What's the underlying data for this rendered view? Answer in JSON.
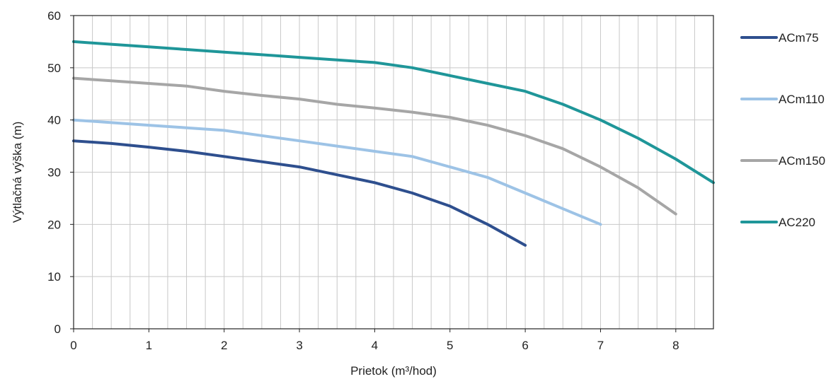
{
  "chart_data": {
    "type": "line",
    "title": "",
    "xlabel": "Prietok (m³/hod)",
    "ylabel": "Výtlačná výška (m)",
    "xlim": [
      0,
      8.5
    ],
    "ylim": [
      0,
      60
    ],
    "x_ticks": [
      "0",
      "1",
      "2",
      "3",
      "4",
      "5",
      "6",
      "7",
      "8"
    ],
    "y_ticks": [
      "0",
      "10",
      "20",
      "30",
      "40",
      "50",
      "60"
    ],
    "minor_x_step": 0.25,
    "y_grid_step": 10,
    "grid": true,
    "legend_position": "right",
    "series": [
      {
        "name": "ACm75",
        "color": "#2E4F8E",
        "points": [
          [
            0,
            36
          ],
          [
            0.5,
            35.5
          ],
          [
            1,
            34.8
          ],
          [
            1.5,
            34
          ],
          [
            2,
            33
          ],
          [
            2.5,
            32
          ],
          [
            3,
            31
          ],
          [
            3.5,
            29.5
          ],
          [
            4,
            28
          ],
          [
            4.5,
            26
          ],
          [
            5,
            23.5
          ],
          [
            5.5,
            20
          ],
          [
            6,
            16
          ]
        ]
      },
      {
        "name": "ACm110",
        "color": "#9DC3E6",
        "points": [
          [
            0,
            40
          ],
          [
            0.5,
            39.5
          ],
          [
            1,
            39
          ],
          [
            1.5,
            38.5
          ],
          [
            2,
            38
          ],
          [
            2.5,
            37
          ],
          [
            3,
            36
          ],
          [
            3.5,
            35
          ],
          [
            4,
            34
          ],
          [
            4.5,
            33
          ],
          [
            5,
            31
          ],
          [
            5.5,
            29
          ],
          [
            6,
            26
          ],
          [
            6.5,
            23
          ],
          [
            7,
            20
          ]
        ]
      },
      {
        "name": "ACm150",
        "color": "#A6A6A6",
        "points": [
          [
            0,
            48
          ],
          [
            0.5,
            47.5
          ],
          [
            1,
            47
          ],
          [
            1.5,
            46.5
          ],
          [
            2,
            45.5
          ],
          [
            2.5,
            44.7
          ],
          [
            3,
            44
          ],
          [
            3.5,
            43
          ],
          [
            4,
            42.3
          ],
          [
            4.5,
            41.5
          ],
          [
            5,
            40.5
          ],
          [
            5.5,
            39
          ],
          [
            6,
            37
          ],
          [
            6.5,
            34.5
          ],
          [
            7,
            31
          ],
          [
            7.5,
            27
          ],
          [
            8,
            22
          ]
        ]
      },
      {
        "name": "AC220",
        "color": "#1F9699",
        "points": [
          [
            0,
            55
          ],
          [
            0.5,
            54.5
          ],
          [
            1,
            54
          ],
          [
            1.5,
            53.5
          ],
          [
            2,
            53
          ],
          [
            2.5,
            52.5
          ],
          [
            3,
            52
          ],
          [
            3.5,
            51.5
          ],
          [
            4,
            51
          ],
          [
            4.5,
            50
          ],
          [
            5,
            48.5
          ],
          [
            5.5,
            47
          ],
          [
            6,
            45.5
          ],
          [
            6.5,
            43
          ],
          [
            7,
            40
          ],
          [
            7.5,
            36.5
          ],
          [
            8,
            32.5
          ],
          [
            8.5,
            28
          ]
        ]
      }
    ]
  }
}
